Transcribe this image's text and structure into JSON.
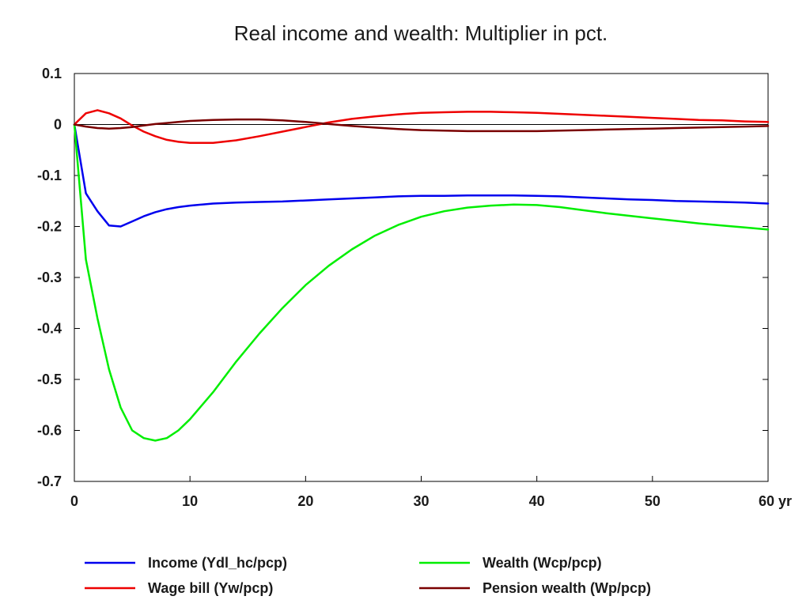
{
  "chart_data": {
    "type": "line",
    "title": "Real income and wealth: Multiplier in pct.",
    "xlabel": "",
    "ylabel": "",
    "x_unit": "yr",
    "xlim": [
      0,
      60
    ],
    "ylim": [
      -0.7,
      0.1
    ],
    "xticks": [
      0,
      10,
      20,
      30,
      40,
      50,
      60
    ],
    "xtick_labels": [
      "0",
      "10",
      "20",
      "30",
      "40",
      "50",
      "60 yr"
    ],
    "yticks": [
      0.1,
      0,
      -0.1,
      -0.2,
      -0.3,
      -0.4,
      -0.5,
      -0.6,
      -0.7
    ],
    "ytick_labels": [
      "0.1",
      "0",
      "-0.1",
      "-0.2",
      "-0.3",
      "-0.4",
      "-0.5",
      "-0.6",
      "-0.7"
    ],
    "grid": false,
    "zero_line": true,
    "legend_position": "bottom",
    "x": [
      0,
      1,
      2,
      3,
      4,
      5,
      6,
      7,
      8,
      9,
      10,
      12,
      14,
      16,
      18,
      20,
      22,
      24,
      26,
      28,
      30,
      32,
      34,
      36,
      38,
      40,
      42,
      44,
      46,
      48,
      50,
      52,
      54,
      56,
      58,
      60
    ],
    "series": [
      {
        "name": "Income (Ydl_hc/pcp)",
        "color": "#0000ee",
        "values": [
          0,
          -0.135,
          -0.17,
          -0.198,
          -0.2,
          -0.19,
          -0.18,
          -0.172,
          -0.166,
          -0.162,
          -0.159,
          -0.155,
          -0.153,
          -0.152,
          -0.151,
          -0.149,
          -0.147,
          -0.145,
          -0.143,
          -0.141,
          -0.14,
          -0.14,
          -0.139,
          -0.139,
          -0.139,
          -0.14,
          -0.141,
          -0.143,
          -0.145,
          -0.147,
          -0.148,
          -0.15,
          -0.151,
          -0.152,
          -0.153,
          -0.155
        ]
      },
      {
        "name": "Wage bill (Yw/pcp)",
        "color": "#ee0000",
        "values": [
          0,
          0.022,
          0.028,
          0.022,
          0.012,
          -0.002,
          -0.014,
          -0.023,
          -0.03,
          -0.034,
          -0.036,
          -0.036,
          -0.031,
          -0.023,
          -0.014,
          -0.005,
          0.004,
          0.011,
          0.016,
          0.02,
          0.023,
          0.024,
          0.025,
          0.025,
          0.024,
          0.023,
          0.021,
          0.019,
          0.017,
          0.015,
          0.013,
          0.011,
          0.009,
          0.008,
          0.006,
          0.005
        ]
      },
      {
        "name": "Wealth (Wcp/pcp)",
        "color": "#00ee00",
        "values": [
          0,
          -0.265,
          -0.38,
          -0.48,
          -0.555,
          -0.6,
          -0.615,
          -0.62,
          -0.615,
          -0.6,
          -0.578,
          -0.525,
          -0.465,
          -0.41,
          -0.36,
          -0.315,
          -0.277,
          -0.245,
          -0.218,
          -0.197,
          -0.181,
          -0.17,
          -0.163,
          -0.159,
          -0.157,
          -0.158,
          -0.162,
          -0.168,
          -0.174,
          -0.179,
          -0.184,
          -0.189,
          -0.194,
          -0.198,
          -0.202,
          -0.206
        ]
      },
      {
        "name": "Pension wealth (Wp/pcp)",
        "color": "#7a0000",
        "values": [
          0,
          -0.004,
          -0.007,
          -0.008,
          -0.007,
          -0.005,
          -0.002,
          0.001,
          0.003,
          0.005,
          0.007,
          0.009,
          0.01,
          0.01,
          0.008,
          0.005,
          0.001,
          -0.003,
          -0.006,
          -0.009,
          -0.011,
          -0.012,
          -0.013,
          -0.013,
          -0.013,
          -0.013,
          -0.012,
          -0.011,
          -0.01,
          -0.009,
          -0.008,
          -0.007,
          -0.006,
          -0.005,
          -0.004,
          -0.003
        ]
      }
    ]
  }
}
